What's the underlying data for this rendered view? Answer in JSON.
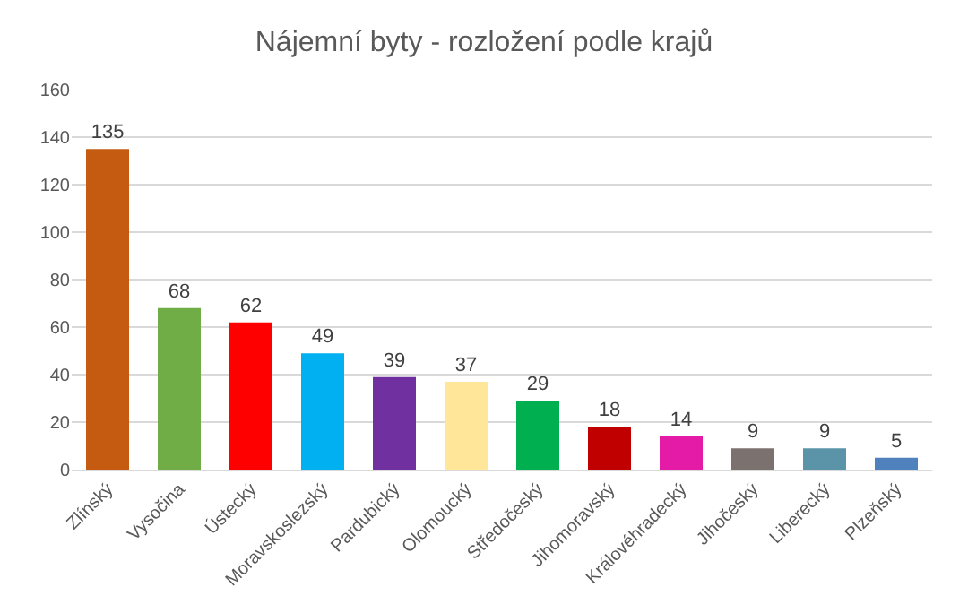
{
  "chart_data": {
    "type": "bar",
    "title": "Nájemní byty - rozložení podle krajů",
    "categories": [
      "Zlínský",
      "Vysočina",
      "Ústecký",
      "Moravskoslezský",
      "Pardubický",
      "Olomoucký",
      "Středočeský",
      "Jihomoravský",
      "Královéhradecký",
      "Jihočeský",
      "Liberecký",
      "Plzeňský"
    ],
    "values": [
      135,
      68,
      62,
      49,
      39,
      37,
      29,
      18,
      14,
      9,
      9,
      5
    ],
    "colors": [
      "#c55a11",
      "#70ad47",
      "#ff0000",
      "#00b0f0",
      "#7030a0",
      "#ffe699",
      "#00b050",
      "#c00000",
      "#e31ba6",
      "#7b7270",
      "#5b94a8",
      "#4f81bd"
    ],
    "ylim": [
      0,
      160
    ],
    "yticks": [
      0,
      20,
      40,
      60,
      80,
      100,
      120,
      140,
      160
    ],
    "grid": "y",
    "data_labels": true
  }
}
